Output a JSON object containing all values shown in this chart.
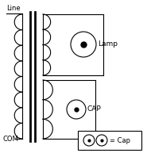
{
  "bg_color": "#ffffff",
  "line_color": "#000000",
  "figsize": [
    1.85,
    1.93
  ],
  "dpi": 100,
  "labels": {
    "line": "Line",
    "com": "COM",
    "lamp": "Lamp",
    "cap": "CAP",
    "legend": "= Cap"
  }
}
